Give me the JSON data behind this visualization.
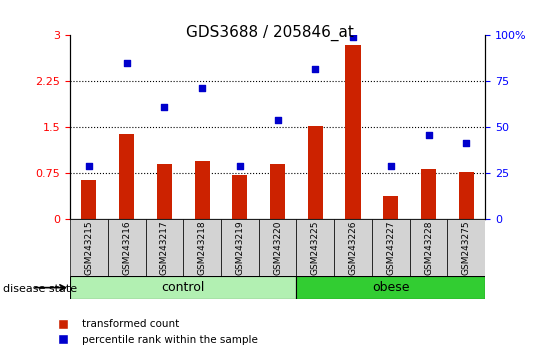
{
  "title": "GDS3688 / 205846_at",
  "samples": [
    "GSM243215",
    "GSM243216",
    "GSM243217",
    "GSM243218",
    "GSM243219",
    "GSM243220",
    "GSM243225",
    "GSM243226",
    "GSM243227",
    "GSM243228",
    "GSM243275"
  ],
  "bar_values": [
    0.65,
    1.4,
    0.9,
    0.95,
    0.72,
    0.9,
    1.52,
    2.85,
    0.38,
    0.82,
    0.77
  ],
  "dot_values": [
    0.87,
    2.55,
    1.83,
    2.15,
    0.87,
    1.62,
    2.45,
    2.98,
    0.87,
    1.38,
    1.25
  ],
  "groups": [
    {
      "label": "control",
      "start": 0,
      "end": 6,
      "color": "#b2f0b2"
    },
    {
      "label": "obese",
      "start": 6,
      "end": 11,
      "color": "#32cd32"
    }
  ],
  "bar_color": "#cc2200",
  "dot_color": "#0000cc",
  "ylim_left": [
    0,
    3
  ],
  "yticks_left": [
    0,
    0.75,
    1.5,
    2.25,
    3
  ],
  "ytick_labels_left": [
    "0",
    "0.75",
    "1.5",
    "2.25",
    "3"
  ],
  "yticks_right": [
    0,
    25,
    50,
    75,
    100
  ],
  "ytick_labels_right": [
    "0",
    "25",
    "50",
    "75",
    "100%"
  ],
  "hlines": [
    0.75,
    1.5,
    2.25
  ],
  "legend_items": [
    "transformed count",
    "percentile rank within the sample"
  ],
  "disease_state_label": "disease state",
  "sample_label_bg": "#d3d3d3"
}
